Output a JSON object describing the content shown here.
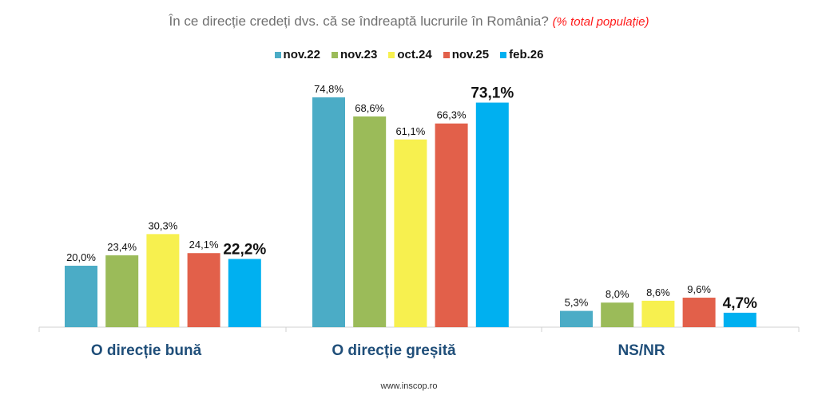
{
  "chart_data": {
    "type": "bar",
    "title": "În ce direcție credeți dvs. că se îndreaptă lucrurile în România?",
    "subtitle": "(% total populație)",
    "categories": [
      "O direcție bună",
      "O direcție greșită",
      "NS/NR"
    ],
    "series": [
      {
        "name": "nov.22",
        "color": "#4bacc6",
        "values": [
          20.0,
          74.8,
          5.3
        ],
        "labels": [
          "20,0%",
          "74,8%",
          "5,3%"
        ]
      },
      {
        "name": "nov.23",
        "color": "#9bbb59",
        "values": [
          23.4,
          68.6,
          8.0
        ],
        "labels": [
          "23,4%",
          "68,6%",
          "8,0%"
        ]
      },
      {
        "name": "oct.24",
        "color": "#f7f04f",
        "values": [
          30.3,
          61.1,
          8.6
        ],
        "labels": [
          "30,3%",
          "61,1%",
          "8,6%"
        ]
      },
      {
        "name": "nov.25",
        "color": "#e2604a",
        "values": [
          24.1,
          66.3,
          9.6
        ],
        "labels": [
          "24,1%",
          "66,3%",
          "9,6%"
        ]
      },
      {
        "name": "feb.26",
        "color": "#00b0f0",
        "values": [
          22.2,
          73.1,
          4.7
        ],
        "labels": [
          "22,2%",
          "73,1%",
          "4,7%"
        ],
        "bold_labels": true
      }
    ],
    "legend_position": "top",
    "grid": false
  },
  "footer": "www.inscop.ro"
}
